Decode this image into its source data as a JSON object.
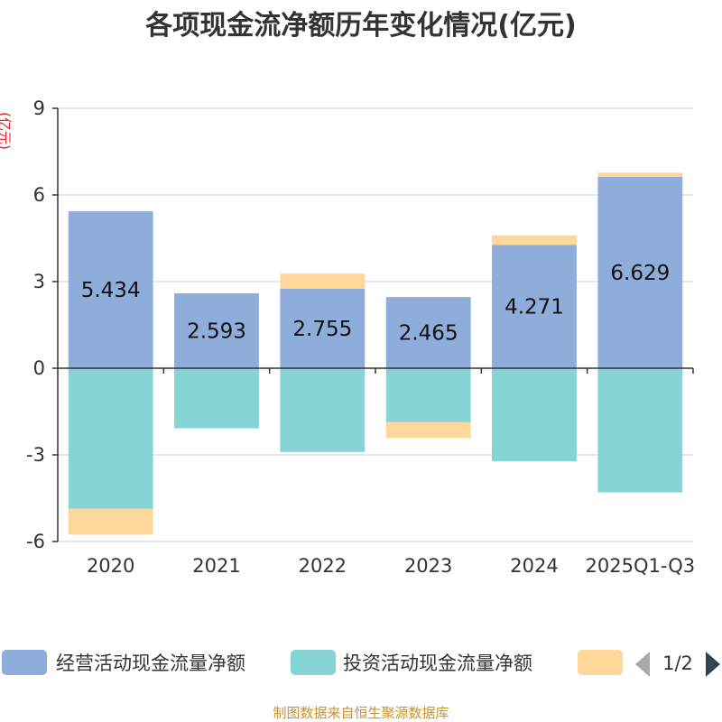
{
  "chart_data": {
    "type": "bar",
    "stacked": true,
    "title": "各项现金流净额历年变化情况(亿元)",
    "ylabel": "(亿元)",
    "xlabel": "",
    "ylim": [
      -6,
      9
    ],
    "yticks": [
      9,
      6,
      3,
      0,
      -3,
      -6
    ],
    "grid": true,
    "categories": [
      "2020",
      "2021",
      "2022",
      "2023",
      "2024",
      "2025Q1-Q3"
    ],
    "series": [
      {
        "name": "经营活动现金流量净额",
        "color": "#8eaddb",
        "values": [
          5.434,
          2.593,
          2.755,
          2.465,
          4.271,
          6.629
        ],
        "labels": [
          "5.434",
          "2.593",
          "2.755",
          "2.465",
          "4.271",
          "6.629"
        ]
      },
      {
        "name": "投资活动现金流量净额",
        "color": "#86d4d6",
        "values": [
          -4.86,
          -2.08,
          -2.9,
          -1.87,
          -3.22,
          -4.3
        ]
      },
      {
        "name": "",
        "color": "#fdd89a",
        "values": [
          -0.9,
          0,
          0.52,
          -0.55,
          0.33,
          0.14
        ]
      }
    ],
    "legend": {
      "position": "bottom",
      "page": "1/2"
    }
  },
  "footer": "制图数据来自恒生聚源数据库"
}
